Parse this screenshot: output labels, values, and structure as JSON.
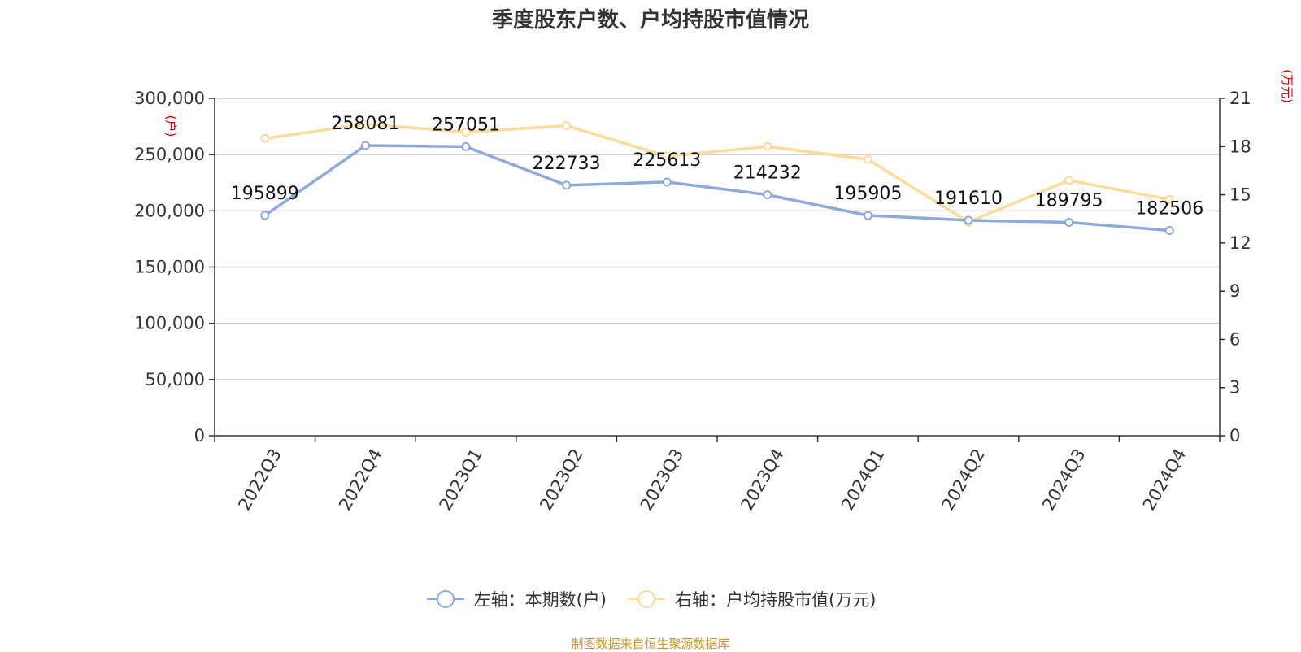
{
  "chart_data": {
    "type": "line",
    "title": "季度股东户数、户均持股市值情况",
    "categories": [
      "2022Q3",
      "2022Q4",
      "2023Q1",
      "2023Q2",
      "2023Q3",
      "2023Q4",
      "2024Q1",
      "2024Q2",
      "2024Q3",
      "2024Q4"
    ],
    "series": [
      {
        "name": "左轴：本期数(户)",
        "axis": "left",
        "color": "#8eaadb",
        "values": [
          195899,
          258081,
          257051,
          222733,
          225613,
          214232,
          195905,
          191610,
          189795,
          182506
        ],
        "labels": [
          "195899",
          "258081",
          "257051",
          "222733",
          "225613",
          "214232",
          "195905",
          "191610",
          "189795",
          "182506"
        ]
      },
      {
        "name": "右轴：户均持股市值(万元)",
        "axis": "right",
        "color": "#fddb9a",
        "values": [
          18.5,
          19.4,
          18.9,
          19.3,
          17.4,
          18.0,
          17.2,
          13.3,
          15.9,
          14.7
        ]
      }
    ],
    "y_left": {
      "unit": "(户)",
      "ylim": [
        0,
        300000
      ],
      "ticks": [
        0,
        50000,
        100000,
        150000,
        200000,
        250000,
        300000
      ],
      "tick_labels": [
        "0",
        "50,000",
        "100,000",
        "150,000",
        "200,000",
        "250,000",
        "300,000"
      ]
    },
    "y_right": {
      "unit": "(万元)",
      "ylim": [
        0,
        21
      ],
      "ticks": [
        0,
        3,
        6,
        9,
        12,
        15,
        18,
        21
      ],
      "tick_labels": [
        "0",
        "3",
        "6",
        "9",
        "12",
        "15",
        "18",
        "21"
      ]
    },
    "grid": true,
    "legend_position": "bottom-center"
  },
  "footer": {
    "source": "制图数据来自恒生聚源数据库"
  },
  "colors": {
    "unit_label": "#e30000",
    "source_text": "#c8962e",
    "grid": "#cccccc",
    "axis": "#333333"
  }
}
